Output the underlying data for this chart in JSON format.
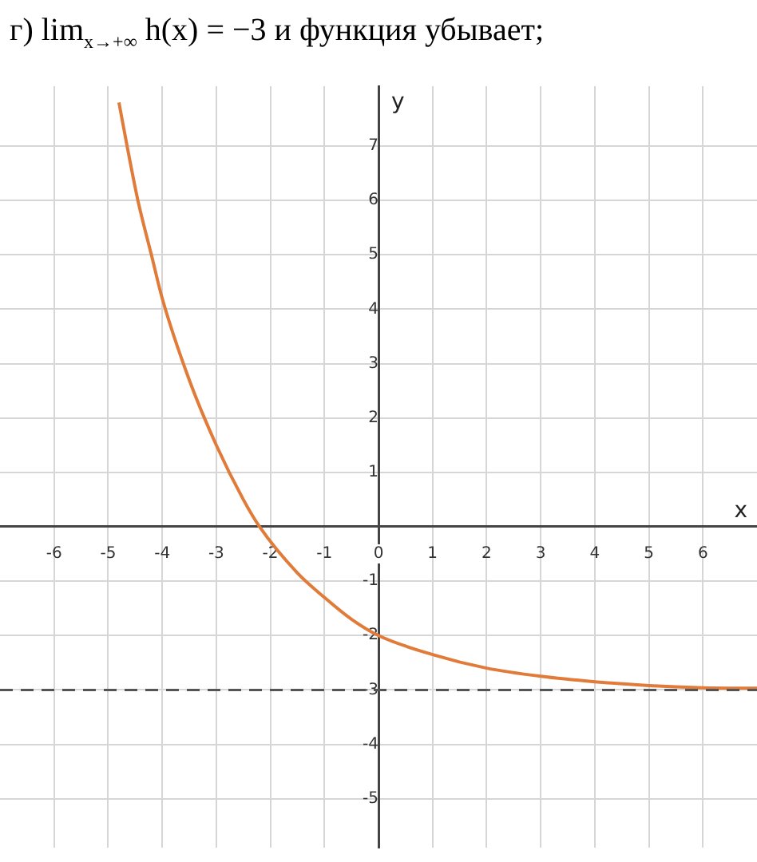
{
  "chart_data": {
    "type": "line",
    "title": "г) lim$_{x→+∞}$ h(x) = −3 и функция убывает;",
    "xlabel": "x",
    "ylabel": "y",
    "x": [
      -4.8,
      -4.65,
      -4.45,
      -4.2,
      -4,
      -3.5,
      -3,
      -2.5,
      -2.2,
      -1.5,
      -1,
      -0.5,
      0,
      1,
      2,
      3,
      4,
      5,
      6,
      7
    ],
    "series": [
      {
        "color": "#e07b39",
        "values": [
          7.8,
          7,
          6,
          5,
          4.2,
          2.7,
          1.5,
          0.5,
          0,
          -0.85,
          -1.3,
          -1.7,
          -2,
          -2.35,
          -2.6,
          -2.75,
          -2.85,
          -2.92,
          -2.96,
          -2.97
        ]
      }
    ],
    "xlim": [
      -7,
      7
    ],
    "ylim": [
      -5.9,
      8.1
    ],
    "xticks": [
      -6,
      -5,
      -4,
      -3,
      -2,
      -1,
      0,
      1,
      2,
      3,
      4,
      5,
      6
    ],
    "yticks": [
      -5,
      -4,
      -3,
      -2,
      -1,
      {
        "value": 0,
        "label": null
      },
      1,
      2,
      3,
      4,
      5,
      6,
      7
    ],
    "ref_lines": [
      {
        "axis": "y",
        "value": -3,
        "color": "#555555",
        "line_style": "dashed"
      }
    ],
    "grid": true,
    "legend": false,
    "marker": "none",
    "line_style": "solid"
  }
}
